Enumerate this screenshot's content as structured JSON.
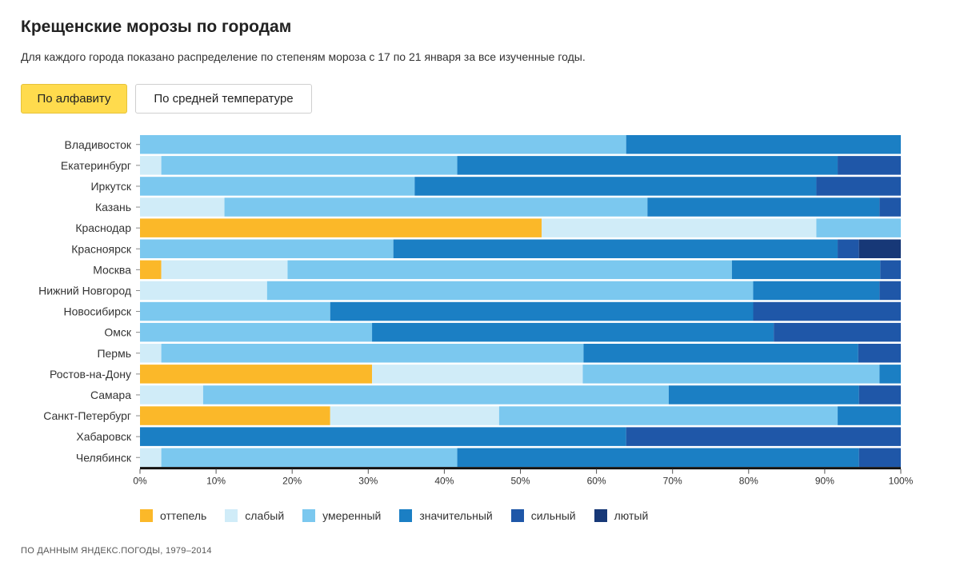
{
  "header": {
    "title": "Крещенские морозы по городам",
    "subtitle": "Для каждого города показано распределение по степеням мороза с 17 по 21 января за все изученные годы."
  },
  "controls": {
    "sort_alpha_label": "По алфавиту",
    "sort_temp_label": "По средней температуре"
  },
  "chart_data": {
    "type": "bar",
    "orientation": "horizontal",
    "stacked": true,
    "normalized": true,
    "categories": [
      "Владивосток",
      "Екатеринбург",
      "Иркутск",
      "Казань",
      "Краснодар",
      "Красноярск",
      "Москва",
      "Нижний Новгород",
      "Новосибирск",
      "Омск",
      "Пермь",
      "Ростов-на-Дону",
      "Самара",
      "Санкт-Петербург",
      "Хабаровск",
      "Челябинск"
    ],
    "series": [
      {
        "name": "оттепель",
        "color": "#fbb829",
        "values": [
          0,
          0,
          0,
          0,
          52.8,
          0,
          2.8,
          0,
          0,
          0,
          0,
          30.5,
          0,
          25,
          0,
          0
        ]
      },
      {
        "name": "слабый",
        "color": "#d0ecf8",
        "values": [
          0,
          2.8,
          0,
          11.1,
          36.1,
          0,
          16.6,
          16.7,
          0,
          0,
          2.8,
          27.7,
          8.3,
          22.2,
          0,
          2.8
        ]
      },
      {
        "name": "умеренный",
        "color": "#7bc8ef",
        "values": [
          63.9,
          38.9,
          36.1,
          55.6,
          11.1,
          33.3,
          58.4,
          63.9,
          25,
          30.5,
          55.5,
          39.0,
          61.2,
          44.5,
          0,
          38.9
        ]
      },
      {
        "name": "значительный",
        "color": "#1b7fc4",
        "values": [
          36.1,
          50,
          52.8,
          30.5,
          0,
          58.4,
          19.5,
          16.6,
          55.6,
          52.8,
          36.1,
          2.8,
          25,
          8.3,
          63.9,
          52.8
        ]
      },
      {
        "name": "сильный",
        "color": "#1f57a8",
        "values": [
          0,
          8.3,
          11.1,
          2.8,
          0,
          2.8,
          2.7,
          2.8,
          19.4,
          16.7,
          5.6,
          0,
          5.5,
          0,
          36.1,
          5.5
        ]
      },
      {
        "name": "лютый",
        "color": "#173877",
        "values": [
          0,
          0,
          0,
          0,
          0,
          5.5,
          0,
          0,
          0,
          0,
          0,
          0,
          0,
          0,
          0,
          0
        ]
      }
    ],
    "xlim": [
      0,
      100
    ],
    "x_ticks": [
      "0%",
      "10%",
      "20%",
      "30%",
      "40%",
      "50%",
      "60%",
      "70%",
      "80%",
      "90%",
      "100%"
    ],
    "legend_position": "bottom-left",
    "grid": false
  },
  "source": "ПО ДАННЫМ ЯНДЕКС.ПОГОДЫ, 1979–2014"
}
